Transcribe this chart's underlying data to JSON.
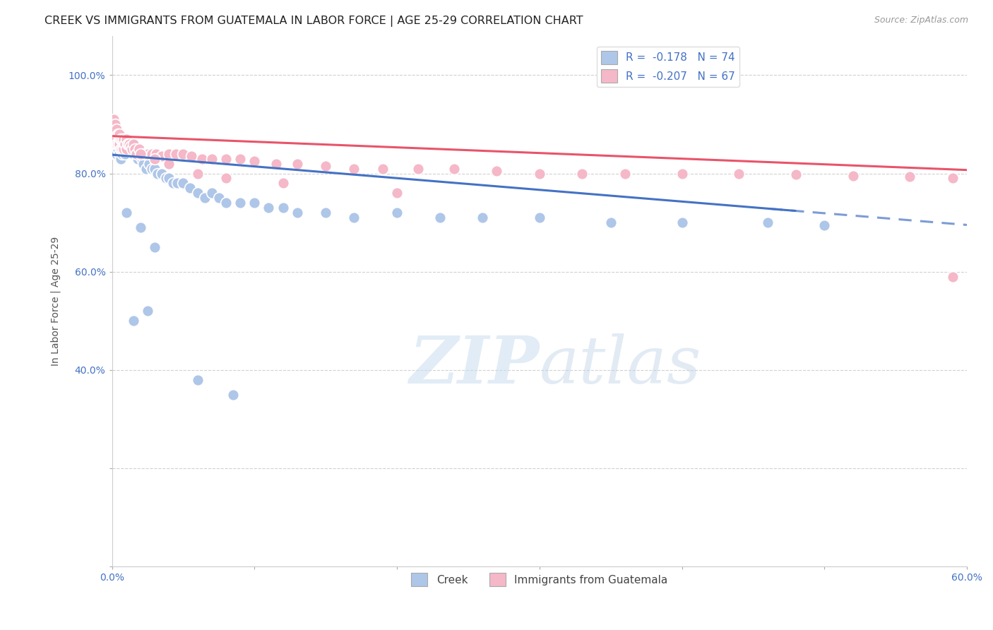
{
  "title": "CREEK VS IMMIGRANTS FROM GUATEMALA IN LABOR FORCE | AGE 25-29 CORRELATION CHART",
  "source": "Source: ZipAtlas.com",
  "ylabel": "In Labor Force | Age 25-29",
  "xlim": [
    0.0,
    0.6
  ],
  "ylim": [
    0.0,
    1.08
  ],
  "xtick_positions": [
    0.0,
    0.1,
    0.2,
    0.3,
    0.4,
    0.5,
    0.6
  ],
  "xticklabels_show": [
    "0.0%",
    "",
    "",
    "",
    "",
    "",
    "60.0%"
  ],
  "ytick_positions": [
    0.0,
    0.2,
    0.4,
    0.6,
    0.8,
    1.0
  ],
  "yticklabels_show": [
    "",
    "",
    "40.0%",
    "60.0%",
    "80.0%",
    "100.0%"
  ],
  "creek_color": "#aec6e8",
  "guate_color": "#f5b8c8",
  "creek_line_color": "#4472c4",
  "guate_line_color": "#e8546a",
  "creek_R": -0.178,
  "creek_N": 74,
  "guate_R": -0.207,
  "guate_N": 67,
  "legend_label_creek": "Creek",
  "legend_label_guate": "Immigrants from Guatemala",
  "watermark_zip": "ZIP",
  "watermark_atlas": "atlas",
  "background_color": "#ffffff",
  "grid_color": "#cccccc",
  "title_color": "#333333",
  "axis_tick_color": "#4472c4",
  "creek_line_intercept": 0.838,
  "creek_line_slope": -0.238,
  "creek_line_solid_end": 0.47,
  "guate_line_intercept": 0.876,
  "guate_line_slope": -0.115,
  "creek_x": [
    0.001,
    0.001,
    0.002,
    0.002,
    0.002,
    0.003,
    0.003,
    0.003,
    0.004,
    0.004,
    0.005,
    0.005,
    0.005,
    0.006,
    0.006,
    0.006,
    0.007,
    0.007,
    0.008,
    0.008,
    0.009,
    0.009,
    0.01,
    0.01,
    0.011,
    0.012,
    0.013,
    0.014,
    0.015,
    0.016,
    0.017,
    0.018,
    0.02,
    0.021,
    0.022,
    0.024,
    0.026,
    0.028,
    0.03,
    0.032,
    0.035,
    0.038,
    0.04,
    0.043,
    0.046,
    0.05,
    0.055,
    0.06,
    0.065,
    0.07,
    0.075,
    0.08,
    0.09,
    0.1,
    0.11,
    0.12,
    0.13,
    0.15,
    0.17,
    0.2,
    0.23,
    0.26,
    0.3,
    0.35,
    0.4,
    0.46,
    0.5,
    0.01,
    0.02,
    0.03,
    0.015,
    0.025,
    0.06,
    0.085
  ],
  "creek_y": [
    0.9,
    0.87,
    0.89,
    0.86,
    0.84,
    0.88,
    0.86,
    0.84,
    0.87,
    0.85,
    0.88,
    0.86,
    0.84,
    0.87,
    0.85,
    0.83,
    0.86,
    0.84,
    0.87,
    0.85,
    0.86,
    0.84,
    0.87,
    0.85,
    0.86,
    0.85,
    0.86,
    0.85,
    0.84,
    0.85,
    0.84,
    0.83,
    0.84,
    0.83,
    0.82,
    0.81,
    0.82,
    0.81,
    0.81,
    0.8,
    0.8,
    0.79,
    0.79,
    0.78,
    0.78,
    0.78,
    0.77,
    0.76,
    0.75,
    0.76,
    0.75,
    0.74,
    0.74,
    0.74,
    0.73,
    0.73,
    0.72,
    0.72,
    0.71,
    0.72,
    0.71,
    0.71,
    0.71,
    0.7,
    0.7,
    0.7,
    0.695,
    0.72,
    0.69,
    0.65,
    0.5,
    0.52,
    0.38,
    0.35
  ],
  "guate_x": [
    0.001,
    0.001,
    0.002,
    0.002,
    0.003,
    0.003,
    0.004,
    0.004,
    0.005,
    0.005,
    0.006,
    0.006,
    0.007,
    0.007,
    0.008,
    0.008,
    0.009,
    0.01,
    0.01,
    0.011,
    0.012,
    0.013,
    0.014,
    0.015,
    0.016,
    0.017,
    0.019,
    0.021,
    0.023,
    0.025,
    0.028,
    0.031,
    0.035,
    0.04,
    0.045,
    0.05,
    0.056,
    0.063,
    0.07,
    0.08,
    0.09,
    0.1,
    0.115,
    0.13,
    0.15,
    0.17,
    0.19,
    0.215,
    0.24,
    0.27,
    0.3,
    0.33,
    0.36,
    0.4,
    0.44,
    0.48,
    0.52,
    0.56,
    0.59,
    0.02,
    0.03,
    0.04,
    0.06,
    0.08,
    0.12,
    0.2,
    0.59
  ],
  "guate_y": [
    0.91,
    0.88,
    0.9,
    0.87,
    0.89,
    0.86,
    0.88,
    0.86,
    0.88,
    0.86,
    0.87,
    0.85,
    0.87,
    0.85,
    0.87,
    0.85,
    0.86,
    0.87,
    0.85,
    0.86,
    0.86,
    0.855,
    0.85,
    0.86,
    0.85,
    0.84,
    0.85,
    0.84,
    0.84,
    0.84,
    0.84,
    0.84,
    0.835,
    0.84,
    0.84,
    0.84,
    0.835,
    0.83,
    0.83,
    0.83,
    0.83,
    0.825,
    0.82,
    0.82,
    0.815,
    0.81,
    0.81,
    0.81,
    0.81,
    0.805,
    0.8,
    0.8,
    0.8,
    0.8,
    0.8,
    0.798,
    0.795,
    0.793,
    0.79,
    0.84,
    0.83,
    0.82,
    0.8,
    0.79,
    0.78,
    0.76,
    0.59
  ]
}
